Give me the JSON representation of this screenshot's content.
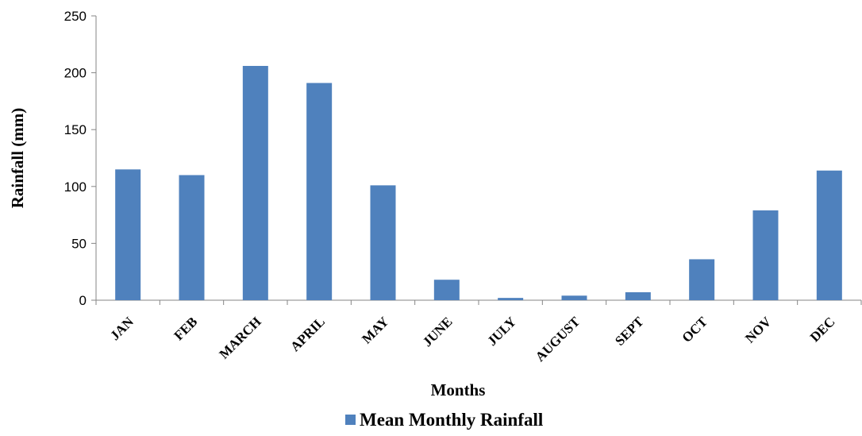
{
  "chart_data": {
    "type": "bar",
    "categories": [
      "JAN",
      "FEB",
      "MARCH",
      "APRIL",
      "MAY",
      "JUNE",
      "JULY",
      "AUGUST",
      "SEPT",
      "OCT",
      "NOV",
      "DEC"
    ],
    "series": [
      {
        "name": "Mean Monthly Rainfall",
        "color": "#4f81bd",
        "values": [
          115,
          110,
          206,
          191,
          101,
          18,
          2,
          4,
          7,
          36,
          79,
          114
        ]
      }
    ],
    "xlabel": "Months",
    "ylabel": "Rainfall (mm)",
    "ylim": [
      0,
      250
    ],
    "yticks": [
      0,
      50,
      100,
      150,
      200,
      250
    ],
    "grid": false,
    "legend_position": "bottom"
  }
}
